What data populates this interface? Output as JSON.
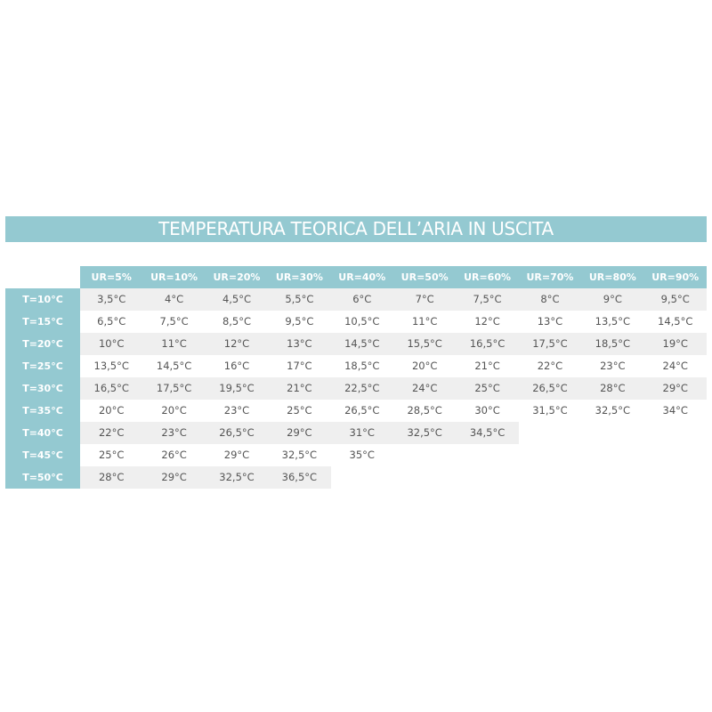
{
  "title": "TEMPERATURA TEORICA DELL’ARIA IN USCITA",
  "colors": {
    "accent": "#94c9d1",
    "stripe": "#efefef",
    "text": "#555555"
  },
  "chart_data": {
    "type": "table",
    "title": "TEMPERATURA TEORICA DELL’ARIA IN USCITA",
    "columns": [
      "UR=5%",
      "UR=10%",
      "UR=20%",
      "UR=30%",
      "UR=40%",
      "UR=50%",
      "UR=60%",
      "UR=70%",
      "UR=80%",
      "UR=90%"
    ],
    "rows": [
      {
        "label": "T=10°C",
        "values": [
          "3,5°C",
          "4°C",
          "4,5°C",
          "5,5°C",
          "6°C",
          "7°C",
          "7,5°C",
          "8°C",
          "9°C",
          "9,5°C"
        ]
      },
      {
        "label": "T=15°C",
        "values": [
          "6,5°C",
          "7,5°C",
          "8,5°C",
          "9,5°C",
          "10,5°C",
          "11°C",
          "12°C",
          "13°C",
          "13,5°C",
          "14,5°C"
        ]
      },
      {
        "label": "T=20°C",
        "values": [
          "10°C",
          "11°C",
          "12°C",
          "13°C",
          "14,5°C",
          "15,5°C",
          "16,5°C",
          "17,5°C",
          "18,5°C",
          "19°C"
        ]
      },
      {
        "label": "T=25°C",
        "values": [
          "13,5°C",
          "14,5°C",
          "16°C",
          "17°C",
          "18,5°C",
          "20°C",
          "21°C",
          "22°C",
          "23°C",
          "24°C"
        ]
      },
      {
        "label": "T=30°C",
        "values": [
          "16,5°C",
          "17,5°C",
          "19,5°C",
          "21°C",
          "22,5°C",
          "24°C",
          "25°C",
          "26,5°C",
          "28°C",
          "29°C"
        ]
      },
      {
        "label": "T=35°C",
        "values": [
          "20°C",
          "20°C",
          "23°C",
          "25°C",
          "26,5°C",
          "28,5°C",
          "30°C",
          "31,5°C",
          "32,5°C",
          "34°C"
        ]
      },
      {
        "label": "T=40°C",
        "values": [
          "22°C",
          "23°C",
          "26,5°C",
          "29°C",
          "31°C",
          "32,5°C",
          "34,5°C"
        ]
      },
      {
        "label": "T=45°C",
        "values": [
          "25°C",
          "26°C",
          "29°C",
          "32,5°C",
          "35°C"
        ]
      },
      {
        "label": "T=50°C",
        "values": [
          "28°C",
          "29°C",
          "32,5°C",
          "36,5°C"
        ]
      }
    ]
  }
}
